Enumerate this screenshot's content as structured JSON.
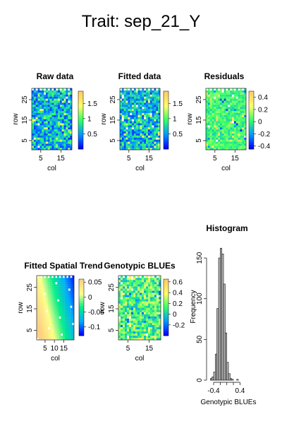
{
  "figure_title": "Trait: sep_21_Y",
  "colors": {
    "grid_ramp": [
      "#0000ff",
      "#0099ff",
      "#33ff66",
      "#ffff66",
      "#ffcc66"
    ],
    "trend_ramp": [
      "#0000ff",
      "#00aaff",
      "#00ee88",
      "#ffff88",
      "#ffd080"
    ],
    "missing": "#ffffff",
    "hist_fill": "#bebebe",
    "hist_border": "#000000"
  },
  "chart_data": [
    {
      "type": "heatmap",
      "title": "Raw data",
      "xlabel": "col",
      "ylabel": "row",
      "x_ticks": [
        5,
        15
      ],
      "y_ticks": [
        5,
        15,
        25
      ],
      "xlim": [
        0.5,
        20.5
      ],
      "ylim": [
        0.5,
        30.5
      ],
      "n_cols": 20,
      "n_rows": 30,
      "value_range": [
        0.0,
        1.9
      ],
      "color_ticks": [
        0.5,
        1.0,
        1.5
      ],
      "pattern": "noise",
      "noise_level": 0.22,
      "missing_top_row": true
    },
    {
      "type": "heatmap",
      "title": "Fitted data",
      "xlabel": "col",
      "ylabel": "row",
      "x_ticks": [
        5,
        15
      ],
      "y_ticks": [
        5,
        15,
        25
      ],
      "xlim": [
        0.5,
        20.5
      ],
      "ylim": [
        0.5,
        30.5
      ],
      "n_cols": 20,
      "n_rows": 30,
      "value_range": [
        0.0,
        1.9
      ],
      "color_ticks": [
        0.5,
        1.0,
        1.5
      ],
      "pattern": "noise",
      "noise_level": 0.2,
      "missing_top_row": true
    },
    {
      "type": "heatmap",
      "title": "Residuals",
      "xlabel": "col",
      "ylabel": "row",
      "x_ticks": [
        5,
        15
      ],
      "y_ticks": [
        5,
        15,
        25
      ],
      "xlim": [
        0.5,
        20.5
      ],
      "ylim": [
        0.5,
        30.5
      ],
      "n_cols": 20,
      "n_rows": 30,
      "value_range": [
        -0.45,
        0.5
      ],
      "color_ticks": [
        -0.4,
        -0.2,
        0.0,
        0.2,
        0.4
      ],
      "pattern": "residual",
      "noise_level": 0.12,
      "missing_top_row": true
    },
    {
      "type": "heatmap",
      "title": "Fitted Spatial Trend",
      "xlabel": "col",
      "ylabel": "row",
      "x_ticks": [
        5,
        10,
        15
      ],
      "y_ticks": [
        5,
        15,
        25
      ],
      "xlim": [
        0.5,
        20.5
      ],
      "ylim": [
        0.5,
        30.5
      ],
      "n_cols": 20,
      "n_rows": 30,
      "value_range": [
        -0.13,
        0.06
      ],
      "color_ticks": [
        -0.1,
        -0.05,
        0.0,
        0.05
      ],
      "pattern": "trend",
      "noise_level": 0.0,
      "missing_top_row": true
    },
    {
      "type": "heatmap",
      "title": "Genotypic BLUEs",
      "xlabel": "col",
      "ylabel": "row",
      "x_ticks": [
        5,
        15
      ],
      "y_ticks": [
        5,
        15,
        25
      ],
      "xlim": [
        0.5,
        20.5
      ],
      "ylim": [
        0.5,
        30.5
      ],
      "n_cols": 20,
      "n_rows": 30,
      "value_range": [
        -0.4,
        0.65
      ],
      "color_ticks": [
        -0.2,
        0.0,
        0.2,
        0.4,
        0.6
      ],
      "pattern": "blues",
      "noise_level": 0.2,
      "missing_top_row": true
    },
    {
      "type": "histogram",
      "title": "Histogram",
      "xlabel": "Genotypic BLUEs",
      "ylabel": "Frequency",
      "bin_width": 0.05,
      "bin_start": -0.5,
      "counts": [
        2,
        4,
        10,
        32,
        88,
        150,
        162,
        155,
        118,
        58,
        22,
        8,
        2,
        1,
        0,
        0,
        1
      ],
      "x_ticks": [
        -0.4,
        0.4
      ],
      "y_ticks": [
        0,
        50,
        100,
        150
      ],
      "xlim": [
        -0.55,
        0.52
      ],
      "ylim": [
        0,
        170
      ]
    }
  ]
}
